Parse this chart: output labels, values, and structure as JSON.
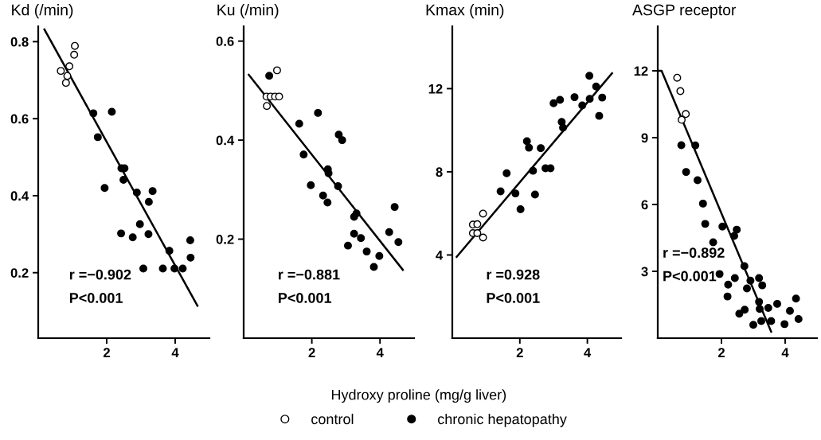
{
  "chart_data": [
    {
      "type": "scatter",
      "title": "Kd (/min)",
      "xlim": [
        0,
        5
      ],
      "ylim": [
        0.03,
        0.84
      ],
      "xticks": [
        2,
        4
      ],
      "yticks": [
        0.2,
        0.4,
        0.6,
        0.8
      ],
      "marker": "circle",
      "grid": false,
      "legend": "bottom",
      "annotations": [
        "r =−0.902",
        "P<0.001"
      ],
      "series": [
        {
          "name": "control",
          "color": "#ffffff",
          "x": [
            0.66,
            0.81,
            0.85,
            0.91,
            1.05,
            1.07
          ],
          "values": [
            0.724,
            0.693,
            0.711,
            0.736,
            0.766,
            0.789
          ]
        },
        {
          "name": "chronic hepatopathy",
          "color": "#000000",
          "x": [
            1.61,
            2.15,
            1.74,
            1.94,
            2.43,
            2.52,
            2.49,
            2.88,
            3.34,
            3.23,
            2.42,
            2.76,
            2.97,
            3.22,
            3.07,
            3.64,
            3.98,
            4.22,
            3.83,
            4.44,
            4.45
          ],
          "values": [
            0.614,
            0.618,
            0.552,
            0.42,
            0.471,
            0.471,
            0.441,
            0.408,
            0.412,
            0.384,
            0.302,
            0.292,
            0.326,
            0.3,
            0.211,
            0.211,
            0.211,
            0.211,
            0.257,
            0.284,
            0.239
          ]
        },
        {
          "type": "line",
          "marker": "none",
          "color": "#000000",
          "x": [
            0.18,
            4.65
          ],
          "values": [
            0.832,
            0.114
          ]
        }
      ]
    },
    {
      "type": "scatter",
      "title": "Ku (/min)",
      "xlim": [
        0,
        5
      ],
      "ylim": [
        0.0,
        0.63
      ],
      "xticks": [
        2,
        4
      ],
      "yticks": [
        0.2,
        0.4,
        0.6
      ],
      "marker": "circle",
      "grid": false,
      "annotations": [
        "r =−0.881",
        "P<0.001",
        "Hydroxy proline (mg/g liver)"
      ],
      "series": [
        {
          "color": "#ffffff",
          "x": [
            0.67,
            0.79,
            0.92,
            1.04,
            0.68,
            0.98
          ],
          "values": [
            0.488,
            0.488,
            0.488,
            0.488,
            0.469,
            0.541
          ]
        },
        {
          "color": "#000000",
          "x": [
            0.75,
            1.63,
            2.18,
            1.76,
            1.97,
            2.79,
            2.89,
            2.47,
            2.49,
            2.33,
            2.46,
            2.77,
            3.24,
            3.31,
            3.24,
            3.44,
            3.06,
            3.61,
            3.98,
            3.82,
            4.27,
            4.43,
            4.54
          ],
          "values": [
            0.53,
            0.433,
            0.455,
            0.371,
            0.309,
            0.411,
            0.4,
            0.341,
            0.333,
            0.288,
            0.274,
            0.307,
            0.245,
            0.252,
            0.211,
            0.202,
            0.187,
            0.175,
            0.166,
            0.144,
            0.214,
            0.265,
            0.194
          ]
        },
        {
          "type": "line",
          "marker": "none",
          "color": "#000000",
          "x": [
            0.15,
            4.67
          ],
          "values": [
            0.532,
            0.138
          ]
        }
      ]
    },
    {
      "type": "scatter",
      "title": "Kmax (min)",
      "xlim": [
        0,
        5
      ],
      "ylim": [
        0,
        15
      ],
      "xticks": [
        2,
        4
      ],
      "yticks": [
        4,
        8,
        12
      ],
      "marker": "circle",
      "grid": false,
      "annotations": [
        "r =0.928",
        "P<0.001"
      ],
      "series": [
        {
          "color": "#ffffff",
          "x": [
            0.61,
            0.74,
            0.61,
            0.74,
            0.91,
            0.91
          ],
          "values": [
            5.46,
            5.48,
            5.05,
            5.05,
            5.99,
            4.84
          ]
        },
        {
          "color": "#000000",
          "x": [
            1.43,
            1.61,
            1.87,
            2.02,
            2.21,
            2.27,
            2.39,
            2.45,
            2.62,
            2.76,
            2.91,
            3.0,
            3.19,
            3.24,
            3.28,
            3.62,
            3.85,
            4.06,
            4.07,
            4.26,
            4.35,
            4.44
          ],
          "values": [
            7.06,
            7.93,
            6.96,
            6.2,
            9.47,
            9.16,
            8.05,
            6.91,
            9.14,
            8.17,
            8.17,
            11.3,
            11.46,
            10.4,
            10.12,
            11.59,
            11.19,
            12.62,
            11.51,
            12.1,
            10.69,
            11.57
          ]
        },
        {
          "type": "line",
          "marker": "none",
          "color": "#000000",
          "x": [
            0.13,
            4.73
          ],
          "values": [
            3.91,
            12.74
          ]
        }
      ]
    },
    {
      "type": "scatter",
      "title": "ASGP receptor",
      "xlim": [
        0,
        5
      ],
      "ylim": [
        0,
        14
      ],
      "xticks": [
        2,
        4
      ],
      "yticks": [
        3,
        6,
        9,
        12
      ],
      "marker": "circle",
      "grid": false,
      "annotations": [
        "r =−0.892",
        "P<0.001"
      ],
      "series": [
        {
          "color": "#ffffff",
          "x": [
            0.61,
            0.71,
            0.88,
            0.75
          ],
          "values": [
            11.69,
            11.09,
            10.06,
            9.8
          ]
        },
        {
          "color": "#000000",
          "x": [
            0.74,
            1.18,
            0.89,
            1.25,
            1.42,
            1.49,
            1.74,
            2.03,
            2.4,
            2.48,
            1.94,
            2.21,
            2.19,
            2.42,
            2.72,
            2.91,
            2.8,
            2.56,
            2.73,
            3.0,
            3.18,
            3.28,
            3.18,
            3.2,
            3.25,
            3.47,
            3.56,
            3.75,
            3.98,
            4.15,
            4.34,
            4.42
          ],
          "values": [
            8.66,
            8.65,
            7.46,
            7.09,
            6.04,
            5.13,
            4.3,
            5.01,
            4.59,
            4.87,
            2.88,
            2.4,
            1.87,
            2.7,
            3.23,
            2.58,
            2.23,
            1.1,
            1.28,
            0.6,
            2.7,
            2.37,
            1.63,
            1.31,
            0.77,
            1.36,
            0.77,
            1.54,
            0.63,
            1.22,
            1.78,
            0.86
          ]
        },
        {
          "type": "line",
          "marker": "none",
          "color": "#000000",
          "x": [
            0.04,
            0.12,
            3.56
          ],
          "values": [
            12,
            12,
            0.29
          ]
        }
      ]
    }
  ]
}
